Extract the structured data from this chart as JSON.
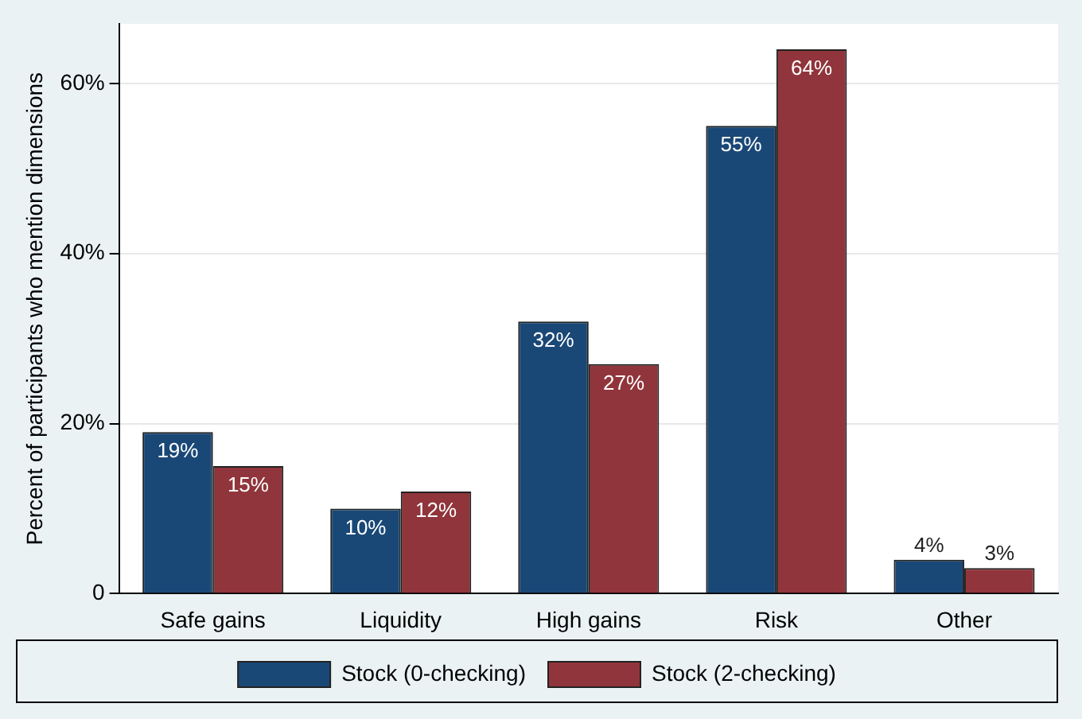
{
  "chart_data": {
    "type": "bar",
    "ylabel": "Percent of participants who mention dimensions",
    "categories": [
      "Safe gains",
      "Liquidity",
      "High gains",
      "Risk",
      "Other"
    ],
    "series": [
      {
        "name": "Stock (0-checking)",
        "color": "#1a4876",
        "values": [
          19,
          10,
          32,
          55,
          4
        ],
        "value_labels": [
          "19%",
          "10%",
          "32%",
          "55%",
          "4%"
        ]
      },
      {
        "name": "Stock (2-checking)",
        "color": "#90353b",
        "values": [
          15,
          12,
          27,
          64,
          3
        ],
        "value_labels": [
          "15%",
          "12%",
          "27%",
          "64%",
          "3%"
        ]
      }
    ],
    "ylim": [
      0,
      67
    ],
    "yticks": [
      0,
      {
        "value": 20,
        "label": "20%"
      },
      {
        "value": 40,
        "label": "40%"
      },
      {
        "value": 60,
        "label": "60%"
      }
    ],
    "grid": "y",
    "legend": "bottom"
  }
}
